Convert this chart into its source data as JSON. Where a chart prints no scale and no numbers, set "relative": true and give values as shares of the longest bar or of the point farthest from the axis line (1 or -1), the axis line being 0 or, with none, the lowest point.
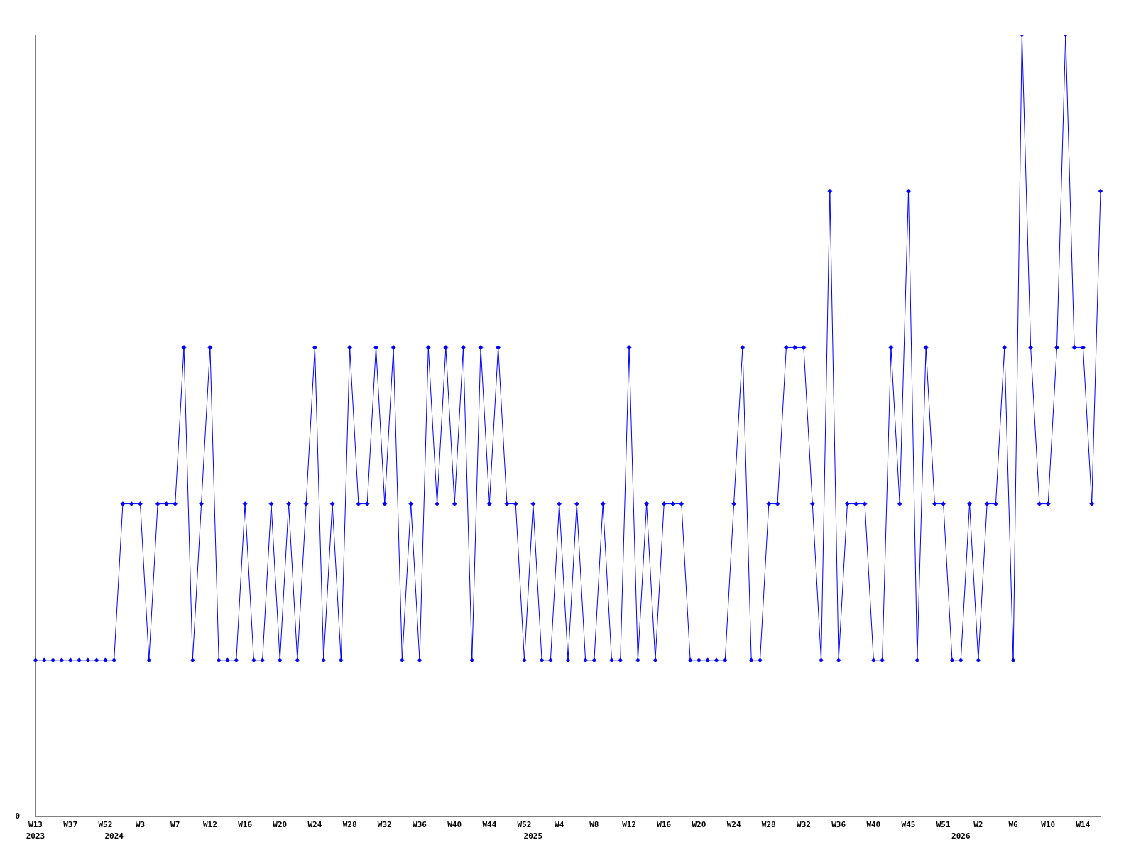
{
  "chart_data": {
    "type": "line",
    "relative": true,
    "color": "#0000ff",
    "marker": "diamond",
    "line_style": "solid",
    "annotations": [
      "0"
    ],
    "categories": [
      "W13\n2023",
      null,
      null,
      null,
      "W37",
      null,
      null,
      null,
      "W52",
      "\n2024",
      null,
      null,
      "W3",
      null,
      null,
      null,
      "W7",
      null,
      null,
      null,
      "W12",
      null,
      null,
      null,
      "W16",
      null,
      null,
      null,
      "W20",
      null,
      null,
      null,
      "W24",
      null,
      null,
      null,
      "W28",
      null,
      null,
      null,
      "W32",
      null,
      null,
      null,
      "W36",
      null,
      null,
      null,
      "W40",
      null,
      null,
      null,
      "W44",
      null,
      null,
      null,
      "W52",
      "\n2025",
      null,
      null,
      "W4",
      null,
      null,
      null,
      "W8",
      null,
      null,
      null,
      "W12",
      null,
      null,
      null,
      "W16",
      null,
      null,
      null,
      "W20",
      null,
      null,
      null,
      "W24",
      null,
      null,
      null,
      "W28",
      null,
      null,
      null,
      "W32",
      null,
      null,
      null,
      "W36",
      null,
      null,
      null,
      "W40",
      null,
      null,
      null,
      "W45",
      null,
      null,
      null,
      "W51",
      null,
      "\n2026",
      null,
      "W2",
      null,
      null,
      null,
      "W6",
      null,
      null,
      null,
      "W10",
      null,
      null,
      null,
      "W14",
      null,
      null
    ],
    "values": [
      0.2,
      0.2,
      0.2,
      0.2,
      0.2,
      0.2,
      0.2,
      0.2,
      0.2,
      0.2,
      0.4,
      0.4,
      0.4,
      0.2,
      0.4,
      0.4,
      0.4,
      0.6,
      0.2,
      0.4,
      0.6,
      0.2,
      0.2,
      0.2,
      0.4,
      0.2,
      0.2,
      0.4,
      0.2,
      0.4,
      0.2,
      0.4,
      0.6,
      0.2,
      0.4,
      0.2,
      0.6,
      0.4,
      0.4,
      0.6,
      0.4,
      0.6,
      0.2,
      0.4,
      0.2,
      0.6,
      0.4,
      0.6,
      0.4,
      0.6,
      0.2,
      0.6,
      0.4,
      0.6,
      0.4,
      0.4,
      0.2,
      0.4,
      0.2,
      0.2,
      0.4,
      0.2,
      0.4,
      0.2,
      0.2,
      0.4,
      0.2,
      0.2,
      0.6,
      0.2,
      0.4,
      0.2,
      0.4,
      0.4,
      0.4,
      0.2,
      0.2,
      0.2,
      0.2,
      0.2,
      0.4,
      0.6,
      0.2,
      0.2,
      0.4,
      0.4,
      0.6,
      0.6,
      0.6,
      0.4,
      0.2,
      0.8,
      0.2,
      0.4,
      0.4,
      0.4,
      0.2,
      0.2,
      0.6,
      0.4,
      0.8,
      0.2,
      0.6,
      0.4,
      0.4,
      0.2,
      0.2,
      0.4,
      0.2,
      0.4,
      0.4,
      0.6,
      0.2,
      1,
      0.6,
      0.4,
      0.4,
      0.6,
      1,
      0.6,
      0.6,
      0.4,
      0.8
    ]
  }
}
